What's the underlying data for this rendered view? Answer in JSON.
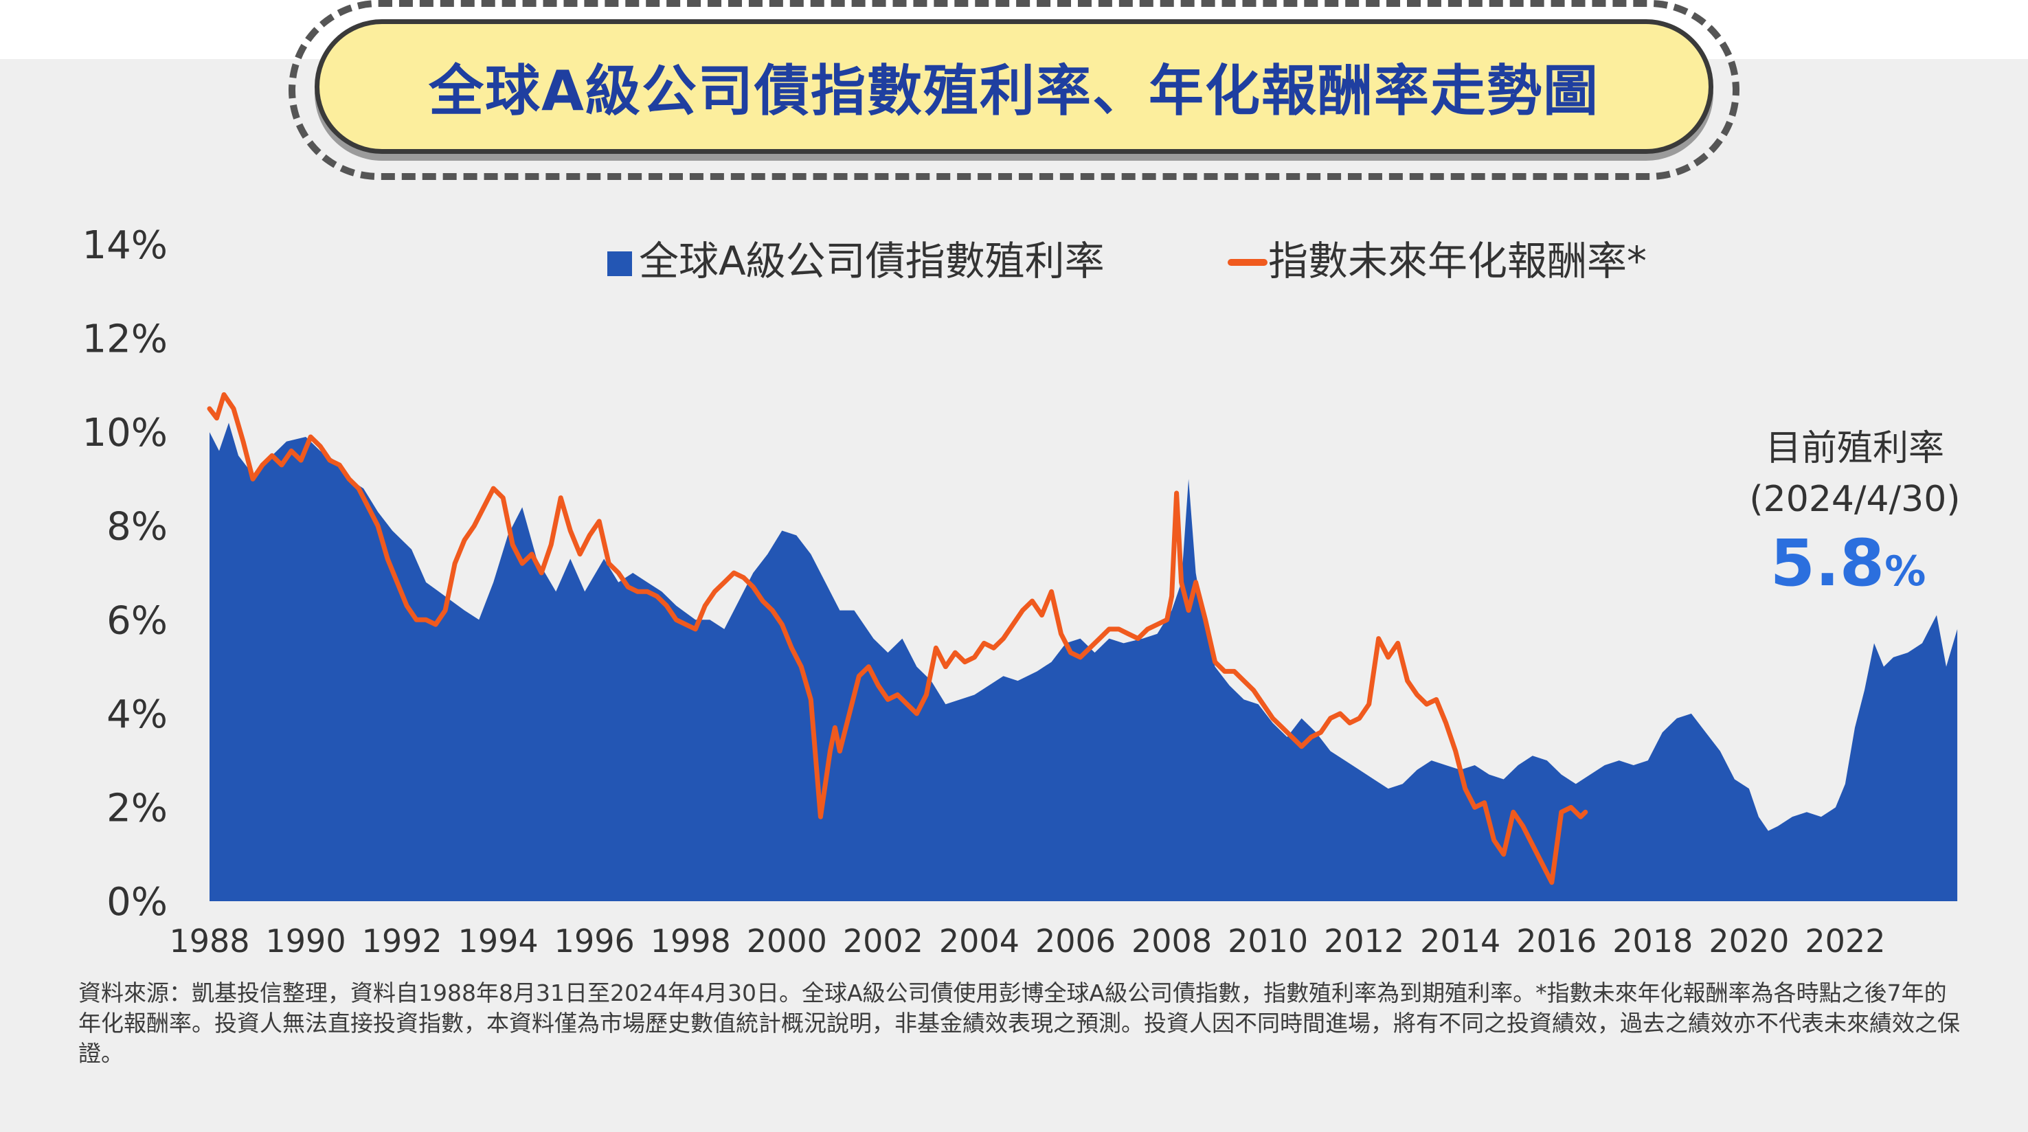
{
  "title": "全球A級公司債指數殖利率、年化報酬率走勢圖",
  "legend": {
    "series1": "全球A級公司債指數殖利率",
    "series2": "指數未來年化報酬率*"
  },
  "current": {
    "label": "目前殖利率",
    "date": "(2024/4/30)",
    "value": "5.8",
    "unit": "%"
  },
  "footnote": "資料來源：凱基投信整理，資料自1988年8月31日至2024年4月30日。全球A級公司債使用彭博全球A級公司債指數，指數殖利率為到期殖利率。*指數未來年化報酬率為各時點之後7年的年化報酬率。投資人無法直接投資指數，本資料僅為市場歷史數值統計概況說明，非基金績效表現之預測。投資人因不同時間進場，將有不同之投資績效，過去之績效亦不代表未來績效之保證。",
  "colors": {
    "yield": "#2356b4",
    "return": "#f05a1e",
    "accent": "#2b6fde",
    "title": "#1f3fa0",
    "panel": "#efefef"
  },
  "chart_data": {
    "type": "area",
    "ylim": [
      0,
      14
    ],
    "xlim": [
      1988,
      2024
    ],
    "yticks": [
      "0%",
      "2%",
      "4%",
      "6%",
      "8%",
      "10%",
      "12%",
      "14%"
    ],
    "ytick_values": [
      0,
      2,
      4,
      6,
      8,
      10,
      12,
      14
    ],
    "xticks": [
      "1988",
      "1990",
      "1992",
      "1994",
      "1996",
      "1998",
      "2000",
      "2002",
      "2004",
      "2006",
      "2008",
      "2010",
      "2012",
      "2014",
      "2016",
      "2018",
      "2020",
      "2022"
    ],
    "xtick_values": [
      1988,
      1990,
      1992,
      1994,
      1996,
      1998,
      2000,
      2002,
      2004,
      2006,
      2008,
      2010,
      2012,
      2014,
      2016,
      2018,
      2020,
      2022
    ],
    "series": [
      {
        "name": "全球A級公司債指數殖利率",
        "type": "area",
        "x": [
          1988.0,
          1988.2,
          1988.4,
          1988.6,
          1988.9,
          1989.2,
          1989.6,
          1990.0,
          1990.3,
          1990.6,
          1990.9,
          1991.2,
          1991.5,
          1991.8,
          1992.2,
          1992.5,
          1992.9,
          1993.3,
          1993.6,
          1993.9,
          1994.2,
          1994.5,
          1994.8,
          1995.2,
          1995.5,
          1995.8,
          1996.2,
          1996.5,
          1996.8,
          1997.1,
          1997.4,
          1997.7,
          1998.1,
          1998.4,
          1998.7,
          1999.0,
          1999.3,
          1999.6,
          1999.9,
          2000.2,
          2000.5,
          2000.8,
          2001.1,
          2001.4,
          2001.8,
          2002.1,
          2002.4,
          2002.7,
          2003.0,
          2003.3,
          2003.6,
          2003.9,
          2004.2,
          2004.5,
          2004.8,
          2005.2,
          2005.5,
          2005.8,
          2006.1,
          2006.4,
          2006.7,
          2007.0,
          2007.4,
          2007.7,
          2008.0,
          2008.2,
          2008.35,
          2008.5,
          2008.7,
          2008.9,
          2009.2,
          2009.5,
          2009.8,
          2010.1,
          2010.4,
          2010.7,
          2011.0,
          2011.3,
          2011.6,
          2011.9,
          2012.2,
          2012.5,
          2012.8,
          2013.1,
          2013.4,
          2013.7,
          2014.0,
          2014.3,
          2014.6,
          2014.9,
          2015.2,
          2015.5,
          2015.8,
          2016.1,
          2016.4,
          2016.7,
          2017.0,
          2017.3,
          2017.6,
          2017.9,
          2018.2,
          2018.5,
          2018.8,
          2019.1,
          2019.4,
          2019.7,
          2020.0,
          2020.2,
          2020.4,
          2020.6,
          2020.9,
          2021.2,
          2021.5,
          2021.8,
          2022.0,
          2022.2,
          2022.4,
          2022.6,
          2022.8,
          2023.0,
          2023.3,
          2023.6,
          2023.9,
          2024.1,
          2024.33
        ],
        "values": [
          10.0,
          9.6,
          10.2,
          9.5,
          9.1,
          9.4,
          9.8,
          9.9,
          9.6,
          9.4,
          9.0,
          8.8,
          8.3,
          7.9,
          7.5,
          6.8,
          6.5,
          6.2,
          6.0,
          6.8,
          7.8,
          8.4,
          7.3,
          6.6,
          7.3,
          6.6,
          7.3,
          6.8,
          7.0,
          6.8,
          6.6,
          6.3,
          6.0,
          6.0,
          5.8,
          6.4,
          7.0,
          7.4,
          7.9,
          7.8,
          7.4,
          6.8,
          6.2,
          6.2,
          5.6,
          5.3,
          5.6,
          5.0,
          4.7,
          4.2,
          4.3,
          4.4,
          4.6,
          4.8,
          4.7,
          4.9,
          5.1,
          5.5,
          5.6,
          5.3,
          5.6,
          5.5,
          5.6,
          5.7,
          6.2,
          6.8,
          9.0,
          7.0,
          5.8,
          5.0,
          4.6,
          4.3,
          4.2,
          3.8,
          3.5,
          3.9,
          3.6,
          3.2,
          3.0,
          2.8,
          2.6,
          2.4,
          2.5,
          2.8,
          3.0,
          2.9,
          2.8,
          2.9,
          2.7,
          2.6,
          2.9,
          3.1,
          3.0,
          2.7,
          2.5,
          2.7,
          2.9,
          3.0,
          2.9,
          3.0,
          3.6,
          3.9,
          4.0,
          3.6,
          3.2,
          2.6,
          2.4,
          1.8,
          1.5,
          1.6,
          1.8,
          1.9,
          1.8,
          2.0,
          2.5,
          3.7,
          4.5,
          5.5,
          5.0,
          5.2,
          5.3,
          5.5,
          6.1,
          5.0,
          5.8
        ]
      },
      {
        "name": "指數未來年化報酬率*",
        "type": "line",
        "x": [
          1988.0,
          1988.15,
          1988.3,
          1988.5,
          1988.7,
          1988.9,
          1989.1,
          1989.3,
          1989.5,
          1989.7,
          1989.9,
          1990.1,
          1990.3,
          1990.5,
          1990.7,
          1990.9,
          1991.1,
          1991.3,
          1991.5,
          1991.7,
          1991.9,
          1992.1,
          1992.3,
          1992.5,
          1992.7,
          1992.9,
          1993.1,
          1993.3,
          1993.5,
          1993.7,
          1993.9,
          1994.1,
          1994.3,
          1994.5,
          1994.7,
          1994.9,
          1995.1,
          1995.3,
          1995.5,
          1995.7,
          1995.9,
          1996.1,
          1996.3,
          1996.5,
          1996.7,
          1996.9,
          1997.1,
          1997.3,
          1997.5,
          1997.7,
          1997.9,
          1998.1,
          1998.3,
          1998.5,
          1998.7,
          1998.9,
          1999.1,
          1999.3,
          1999.5,
          1999.7,
          1999.9,
          2000.1,
          2000.3,
          2000.5,
          2000.7,
          2000.9,
          2001.0,
          2001.1,
          2001.2,
          2001.35,
          2001.5,
          2001.7,
          2001.9,
          2002.1,
          2002.3,
          2002.5,
          2002.7,
          2002.9,
          2003.1,
          2003.3,
          2003.5,
          2003.7,
          2003.9,
          2004.1,
          2004.3,
          2004.5,
          2004.7,
          2004.9,
          2005.1,
          2005.3,
          2005.5,
          2005.7,
          2005.9,
          2006.1,
          2006.3,
          2006.5,
          2006.7,
          2006.9,
          2007.1,
          2007.3,
          2007.5,
          2007.7,
          2007.9,
          2008.0,
          2008.1,
          2008.2,
          2008.35,
          2008.5,
          2008.7,
          2008.9,
          2009.1,
          2009.3,
          2009.5,
          2009.7,
          2009.9,
          2010.1,
          2010.3,
          2010.5,
          2010.7,
          2010.9,
          2011.1,
          2011.3,
          2011.5,
          2011.7,
          2011.9,
          2012.1,
          2012.3,
          2012.5,
          2012.7,
          2012.9,
          2013.1,
          2013.3,
          2013.5,
          2013.7,
          2013.9,
          2014.1,
          2014.3,
          2014.5,
          2014.7,
          2014.9,
          2015.1,
          2015.3,
          2015.5,
          2015.7,
          2015.9,
          2016.1,
          2016.3,
          2016.5,
          2016.6
        ],
        "values": [
          10.5,
          10.3,
          10.8,
          10.5,
          9.8,
          9.0,
          9.3,
          9.5,
          9.3,
          9.6,
          9.4,
          9.9,
          9.7,
          9.4,
          9.3,
          9.0,
          8.8,
          8.4,
          8.0,
          7.3,
          6.8,
          6.3,
          6.0,
          6.0,
          5.9,
          6.2,
          7.2,
          7.7,
          8.0,
          8.4,
          8.8,
          8.6,
          7.6,
          7.2,
          7.4,
          7.0,
          7.6,
          8.6,
          7.9,
          7.4,
          7.8,
          8.1,
          7.2,
          7.0,
          6.7,
          6.6,
          6.6,
          6.5,
          6.3,
          6.0,
          5.9,
          5.8,
          6.3,
          6.6,
          6.8,
          7.0,
          6.9,
          6.7,
          6.4,
          6.2,
          5.9,
          5.4,
          5.0,
          4.3,
          1.8,
          3.2,
          3.7,
          3.2,
          3.6,
          4.2,
          4.8,
          5.0,
          4.6,
          4.3,
          4.4,
          4.2,
          4.0,
          4.4,
          5.4,
          5.0,
          5.3,
          5.1,
          5.2,
          5.5,
          5.4,
          5.6,
          5.9,
          6.2,
          6.4,
          6.1,
          6.6,
          5.7,
          5.3,
          5.2,
          5.4,
          5.6,
          5.8,
          5.8,
          5.7,
          5.6,
          5.8,
          5.9,
          6.0,
          6.5,
          8.7,
          6.8,
          6.2,
          6.8,
          6.0,
          5.1,
          4.9,
          4.9,
          4.7,
          4.5,
          4.2,
          3.9,
          3.7,
          3.5,
          3.3,
          3.5,
          3.6,
          3.9,
          4.0,
          3.8,
          3.9,
          4.2,
          5.6,
          5.2,
          5.5,
          4.7,
          4.4,
          4.2,
          4.3,
          3.8,
          3.2,
          2.4,
          2.0,
          2.1,
          1.3,
          1.0,
          1.9,
          1.6,
          1.2,
          0.8,
          0.4,
          1.9,
          2.0,
          1.8,
          1.9
        ]
      }
    ]
  }
}
